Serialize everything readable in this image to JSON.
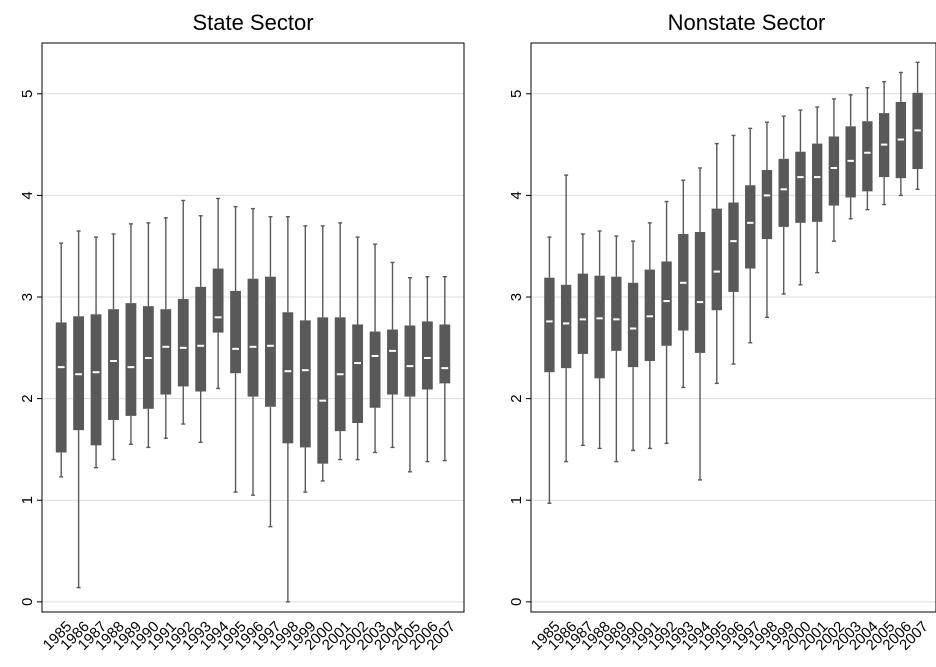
{
  "style": {
    "box_color": "#595959",
    "median_color": "#ffffff",
    "whisker_color": "#595959",
    "grid_color": "#dcdcdc",
    "frame_color": "#000000"
  },
  "chart_data": [
    {
      "type": "box",
      "title": "State Sector",
      "categories": [
        "1985",
        "1986",
        "1987",
        "1988",
        "1989",
        "1990",
        "1991",
        "1992",
        "1993",
        "1994",
        "1995",
        "1996",
        "1997",
        "1998",
        "1999",
        "2000",
        "2001",
        "2002",
        "2003",
        "2004",
        "2005",
        "2006",
        "2007"
      ],
      "ylim": [
        -0.1,
        5.5
      ],
      "yticks": [
        "0",
        "1",
        "2",
        "3",
        "4",
        "5"
      ],
      "grid": true,
      "boxes": [
        {
          "min": 1.23,
          "q1": 1.47,
          "median": 2.31,
          "q3": 2.75,
          "max": 3.53
        },
        {
          "min": 0.14,
          "q1": 1.69,
          "median": 2.24,
          "q3": 2.81,
          "max": 3.65
        },
        {
          "min": 1.32,
          "q1": 1.54,
          "median": 2.26,
          "q3": 2.83,
          "max": 3.59
        },
        {
          "min": 1.4,
          "q1": 1.79,
          "median": 2.37,
          "q3": 2.88,
          "max": 3.62
        },
        {
          "min": 1.55,
          "q1": 1.83,
          "median": 2.31,
          "q3": 2.94,
          "max": 3.72
        },
        {
          "min": 1.52,
          "q1": 1.9,
          "median": 2.4,
          "q3": 2.91,
          "max": 3.73
        },
        {
          "min": 1.61,
          "q1": 2.04,
          "median": 2.51,
          "q3": 2.88,
          "max": 3.78
        },
        {
          "min": 1.75,
          "q1": 2.12,
          "median": 2.5,
          "q3": 2.98,
          "max": 3.95
        },
        {
          "min": 1.57,
          "q1": 2.07,
          "median": 2.52,
          "q3": 3.1,
          "max": 3.8
        },
        {
          "min": 2.1,
          "q1": 2.65,
          "median": 2.8,
          "q3": 3.28,
          "max": 3.97
        },
        {
          "min": 1.08,
          "q1": 2.25,
          "median": 2.49,
          "q3": 3.06,
          "max": 3.89
        },
        {
          "min": 1.05,
          "q1": 2.02,
          "median": 2.51,
          "q3": 3.18,
          "max": 3.87
        },
        {
          "min": 0.74,
          "q1": 1.92,
          "median": 2.52,
          "q3": 3.2,
          "max": 3.79
        },
        {
          "min": 0.0,
          "q1": 1.56,
          "median": 2.27,
          "q3": 2.85,
          "max": 3.79
        },
        {
          "min": 1.08,
          "q1": 1.52,
          "median": 2.28,
          "q3": 2.77,
          "max": 3.7
        },
        {
          "min": 1.19,
          "q1": 1.36,
          "median": 1.98,
          "q3": 2.8,
          "max": 3.7
        },
        {
          "min": 1.4,
          "q1": 1.68,
          "median": 2.24,
          "q3": 2.8,
          "max": 3.73
        },
        {
          "min": 1.4,
          "q1": 1.76,
          "median": 2.35,
          "q3": 2.73,
          "max": 3.59
        },
        {
          "min": 1.47,
          "q1": 1.91,
          "median": 2.42,
          "q3": 2.66,
          "max": 3.52
        },
        {
          "min": 1.52,
          "q1": 2.04,
          "median": 2.47,
          "q3": 2.68,
          "max": 3.34
        },
        {
          "min": 1.28,
          "q1": 2.02,
          "median": 2.32,
          "q3": 2.72,
          "max": 3.19
        },
        {
          "min": 1.38,
          "q1": 2.09,
          "median": 2.4,
          "q3": 2.76,
          "max": 3.2
        },
        {
          "min": 1.39,
          "q1": 2.15,
          "median": 2.3,
          "q3": 2.73,
          "max": 3.2
        }
      ]
    },
    {
      "type": "box",
      "title": "Nonstate Sector",
      "categories": [
        "1985",
        "1986",
        "1987",
        "1988",
        "1989",
        "1990",
        "1991",
        "1992",
        "1993",
        "1994",
        "1995",
        "1996",
        "1997",
        "1998",
        "1999",
        "2000",
        "2001",
        "2002",
        "2003",
        "2004",
        "2005",
        "2006",
        "2007"
      ],
      "ylim": [
        -0.1,
        5.5
      ],
      "yticks": [
        "0",
        "1",
        "2",
        "3",
        "4",
        "5"
      ],
      "grid": true,
      "boxes": [
        {
          "min": 0.97,
          "q1": 2.26,
          "median": 2.76,
          "q3": 3.19,
          "max": 3.59
        },
        {
          "min": 1.38,
          "q1": 2.3,
          "median": 2.74,
          "q3": 3.12,
          "max": 4.2
        },
        {
          "min": 1.54,
          "q1": 2.44,
          "median": 2.78,
          "q3": 3.23,
          "max": 3.62
        },
        {
          "min": 1.51,
          "q1": 2.2,
          "median": 2.79,
          "q3": 3.21,
          "max": 3.65
        },
        {
          "min": 1.38,
          "q1": 2.47,
          "median": 2.78,
          "q3": 3.2,
          "max": 3.6
        },
        {
          "min": 1.49,
          "q1": 2.31,
          "median": 2.69,
          "q3": 3.14,
          "max": 3.55
        },
        {
          "min": 1.51,
          "q1": 2.37,
          "median": 2.81,
          "q3": 3.27,
          "max": 3.73
        },
        {
          "min": 1.56,
          "q1": 2.52,
          "median": 2.96,
          "q3": 3.35,
          "max": 3.94
        },
        {
          "min": 2.11,
          "q1": 2.67,
          "median": 3.14,
          "q3": 3.62,
          "max": 4.15
        },
        {
          "min": 1.2,
          "q1": 2.45,
          "median": 2.95,
          "q3": 3.64,
          "max": 4.27
        },
        {
          "min": 2.15,
          "q1": 2.87,
          "median": 3.25,
          "q3": 3.87,
          "max": 4.51
        },
        {
          "min": 2.34,
          "q1": 3.05,
          "median": 3.55,
          "q3": 3.93,
          "max": 4.59
        },
        {
          "min": 2.55,
          "q1": 3.28,
          "median": 3.73,
          "q3": 4.1,
          "max": 4.66
        },
        {
          "min": 2.8,
          "q1": 3.57,
          "median": 4.0,
          "q3": 4.25,
          "max": 4.72
        },
        {
          "min": 3.03,
          "q1": 3.69,
          "median": 4.06,
          "q3": 4.36,
          "max": 4.78
        },
        {
          "min": 3.12,
          "q1": 3.73,
          "median": 4.18,
          "q3": 4.43,
          "max": 4.84
        },
        {
          "min": 3.24,
          "q1": 3.74,
          "median": 4.18,
          "q3": 4.51,
          "max": 4.87
        },
        {
          "min": 3.55,
          "q1": 3.9,
          "median": 4.27,
          "q3": 4.58,
          "max": 4.95
        },
        {
          "min": 3.77,
          "q1": 3.98,
          "median": 4.34,
          "q3": 4.68,
          "max": 4.99
        },
        {
          "min": 3.86,
          "q1": 4.04,
          "median": 4.42,
          "q3": 4.73,
          "max": 5.06
        },
        {
          "min": 3.91,
          "q1": 4.18,
          "median": 4.5,
          "q3": 4.81,
          "max": 5.12
        },
        {
          "min": 4.0,
          "q1": 4.17,
          "median": 4.55,
          "q3": 4.92,
          "max": 5.21
        },
        {
          "min": 4.06,
          "q1": 4.26,
          "median": 4.64,
          "q3": 5.01,
          "max": 5.31
        }
      ]
    }
  ]
}
